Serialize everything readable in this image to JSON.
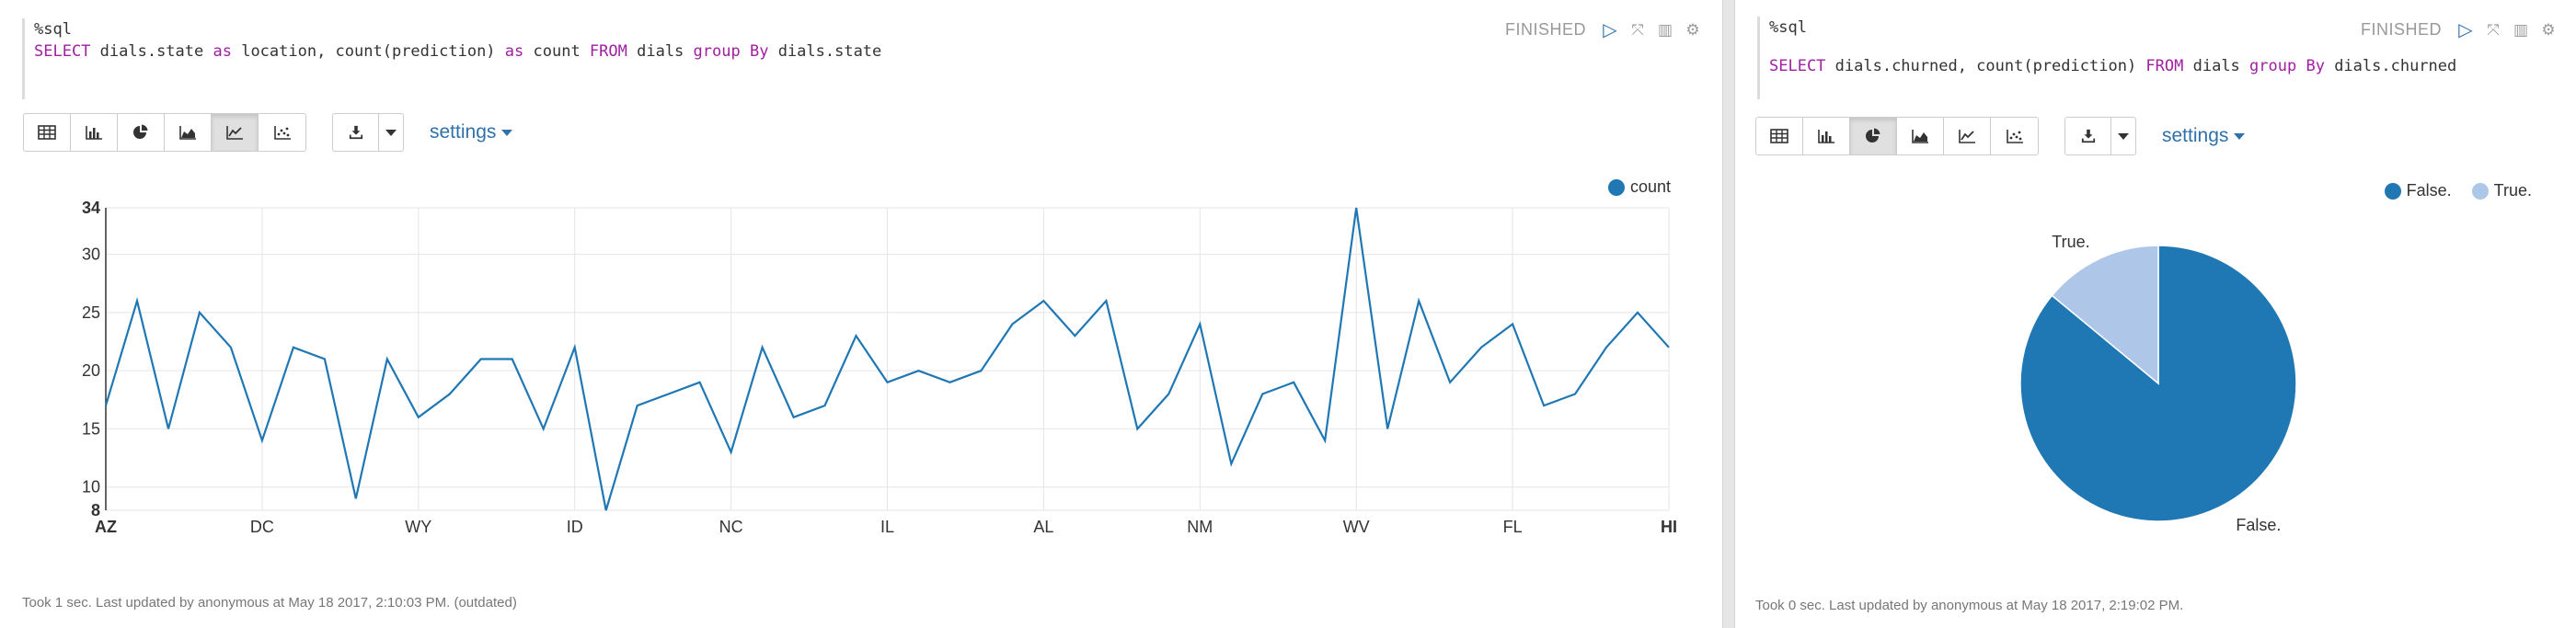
{
  "left_paragraph": {
    "interpreter": "%sql",
    "query": {
      "select": "SELECT",
      "col1": " dials.state ",
      "as1": "as",
      "alias1": " location, count(prediction) ",
      "as2": "as",
      "alias2": " count ",
      "from": "FROM",
      "table": " dials ",
      "group": "group",
      "by": "By",
      "groupcol": " dials.state"
    },
    "status": "FINISHED",
    "settings_label": "settings",
    "active_view": "line",
    "footer": "Took 1 sec. Last updated by anonymous at May 18 2017, 2:10:03 PM. (outdated)"
  },
  "right_paragraph": {
    "interpreter": "%sql",
    "query": {
      "select": "SELECT",
      "cols": " dials.churned, count(prediction) ",
      "from": "FROM",
      "table": " dials ",
      "group": "group",
      "by": "By",
      "groupcol": " dials.churned"
    },
    "status": "FINISHED",
    "settings_label": "settings",
    "active_view": "pie",
    "footer": "Took 0 sec. Last updated by anonymous at May 18 2017, 2:19:02 PM."
  },
  "colors": {
    "series_blue": "#1f77b4",
    "pie_light": "#aec7e8",
    "link_blue": "#3071a9"
  },
  "icons": [
    "table-icon",
    "bar-chart-icon",
    "pie-chart-icon",
    "area-chart-icon",
    "line-chart-icon",
    "scatter-chart-icon",
    "download-icon",
    "play-icon",
    "expand-icon",
    "book-icon",
    "gear-icon"
  ],
  "chart_data": [
    {
      "type": "line",
      "series": [
        {
          "name": "count",
          "values": [
            17,
            26,
            15,
            25,
            22,
            14,
            22,
            21,
            9,
            21,
            16,
            18,
            21,
            21,
            15,
            22,
            8,
            17,
            18,
            19,
            13,
            22,
            16,
            17,
            23,
            19,
            20,
            19,
            20,
            24,
            26,
            23,
            26,
            15,
            18,
            24,
            12,
            18,
            19,
            14,
            34,
            15,
            26,
            19,
            22,
            24,
            17,
            18,
            22,
            25,
            22
          ]
        }
      ],
      "x_tick_labels": [
        "AZ",
        "DC",
        "WY",
        "ID",
        "NC",
        "IL",
        "AL",
        "NM",
        "WV",
        "FL",
        "HI"
      ],
      "x_tick_positions": [
        0,
        5,
        10,
        15,
        20,
        25,
        30,
        35,
        40,
        45,
        50
      ],
      "y_ticks": [
        8,
        10,
        15,
        20,
        25,
        30,
        34
      ],
      "ylim": [
        8,
        34
      ],
      "legend": [
        "count"
      ],
      "legend_position": "top-right",
      "grid": true
    },
    {
      "type": "pie",
      "categories": [
        "False.",
        "True."
      ],
      "values": [
        86,
        14
      ],
      "legend": [
        "False.",
        "True."
      ],
      "legend_position": "top-right"
    }
  ]
}
